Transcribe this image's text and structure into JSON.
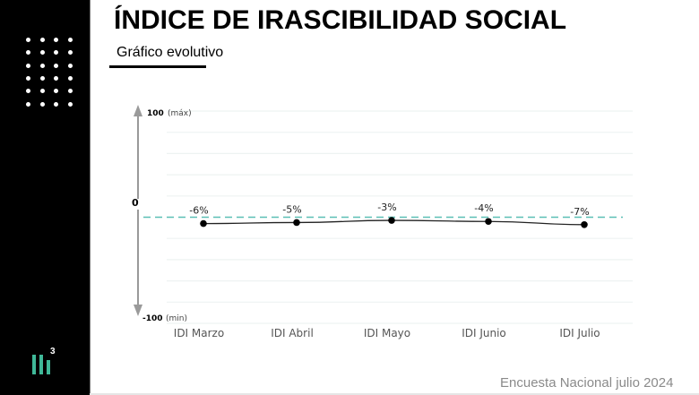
{
  "header": {
    "title": "ÍNDICE DE IRASCIBILIDAD SOCIAL",
    "subtitle": "Gráfico evolutivo"
  },
  "sidebar": {
    "logo_text": "3"
  },
  "footer": {
    "source": "Encuesta Nacional julio 2024"
  },
  "colors": {
    "zero_line": "#5bbfb5",
    "series": "#222222",
    "logo": "#3fb898",
    "axis_arrow": "#9a9a9a",
    "grid": "#eef3f2"
  },
  "chart_data": {
    "type": "line",
    "title": "ÍNDICE DE IRASCIBILIDAD SOCIAL",
    "subtitle": "Gráfico evolutivo",
    "categories": [
      "IDI Marzo",
      "IDI Abril",
      "IDI Mayo",
      "IDI Junio",
      "IDI Julio"
    ],
    "series": [
      {
        "name": "IDI",
        "values": [
          -6,
          -5,
          -3,
          -4,
          -7
        ]
      }
    ],
    "data_labels": [
      "-6%",
      "-5%",
      "-3%",
      "-4%",
      "-7%"
    ],
    "ylim": [
      -100,
      100
    ],
    "y_axis": {
      "max_value": "100",
      "max_label": "(máx)",
      "zero_label": "0",
      "min_value": "-100",
      "min_label": "(min)"
    },
    "grid": true,
    "reference_line": {
      "value": 0,
      "style": "dashed"
    },
    "xlabel": "",
    "ylabel": ""
  }
}
